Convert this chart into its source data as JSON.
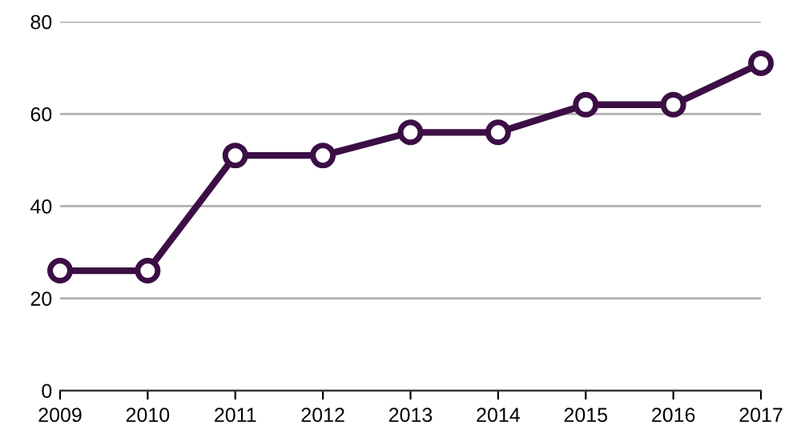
{
  "chart_data": {
    "type": "line",
    "x": [
      2009,
      2010,
      2011,
      2012,
      2013,
      2014,
      2015,
      2016,
      2017
    ],
    "series": [
      {
        "color": "#3b0f45",
        "values": [
          26,
          26,
          51,
          51,
          56,
          56,
          62,
          62,
          71
        ]
      }
    ],
    "xlim": [
      2009,
      2017
    ],
    "xticks": [
      2009,
      2010,
      2011,
      2012,
      2013,
      2014,
      2015,
      2016,
      2017
    ],
    "ylim": [
      0,
      80
    ],
    "yticks": [
      0,
      20,
      40,
      60,
      80
    ],
    "grid": "y",
    "marker": "circle",
    "line_style": "solid"
  }
}
